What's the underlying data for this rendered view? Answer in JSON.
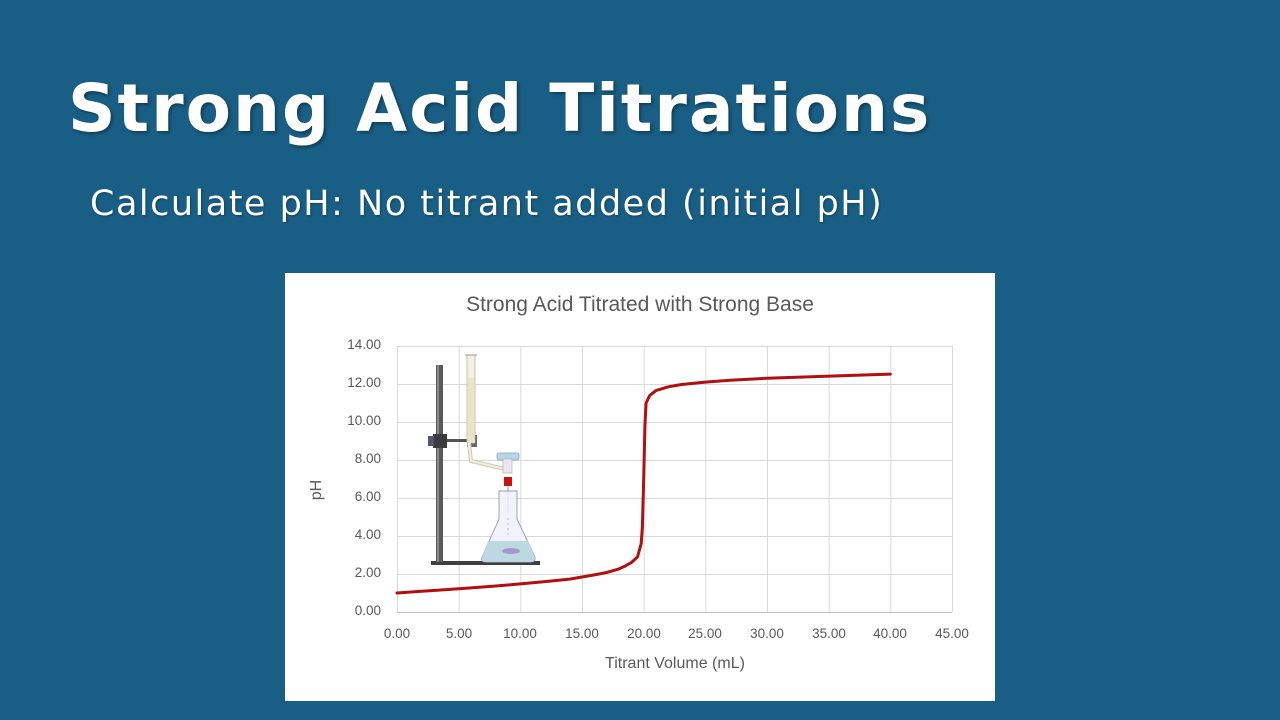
{
  "slide": {
    "title": "Strong Acid Titrations",
    "subtitle": "Calculate pH: No titrant added (initial pH)",
    "background_color": "#195f85"
  },
  "chart_data": {
    "type": "line",
    "title": "Strong Acid Titrated with Strong Base",
    "xlabel": "Titrant Volume (mL)",
    "ylabel": "pH",
    "xlim": [
      0,
      45
    ],
    "ylim": [
      0,
      14
    ],
    "x_ticks": [
      "0.00",
      "5.00",
      "10.00",
      "15.00",
      "20.00",
      "25.00",
      "30.00",
      "35.00",
      "40.00",
      "45.00"
    ],
    "y_ticks": [
      "0.00",
      "2.00",
      "4.00",
      "6.00",
      "8.00",
      "10.00",
      "12.00",
      "14.00"
    ],
    "grid": true,
    "legend": "none",
    "series": [
      {
        "name": "pH",
        "color": "#b01010",
        "x": [
          0,
          2,
          4,
          6,
          8,
          10,
          12,
          14,
          16,
          17,
          18,
          18.5,
          19,
          19.5,
          19.8,
          19.9,
          20.0,
          20.1,
          20.2,
          20.5,
          21,
          22,
          23,
          25,
          27,
          30,
          33,
          36,
          40
        ],
        "y": [
          1.0,
          1.09,
          1.18,
          1.27,
          1.37,
          1.48,
          1.6,
          1.73,
          1.95,
          2.08,
          2.27,
          2.42,
          2.6,
          2.9,
          3.6,
          4.5,
          7.0,
          9.8,
          11.0,
          11.4,
          11.65,
          11.85,
          11.97,
          12.1,
          12.2,
          12.3,
          12.37,
          12.43,
          12.52
        ]
      }
    ],
    "annotations": [
      "inset illustration: burette on ring stand dispensing into Erlenmeyer flask"
    ]
  }
}
